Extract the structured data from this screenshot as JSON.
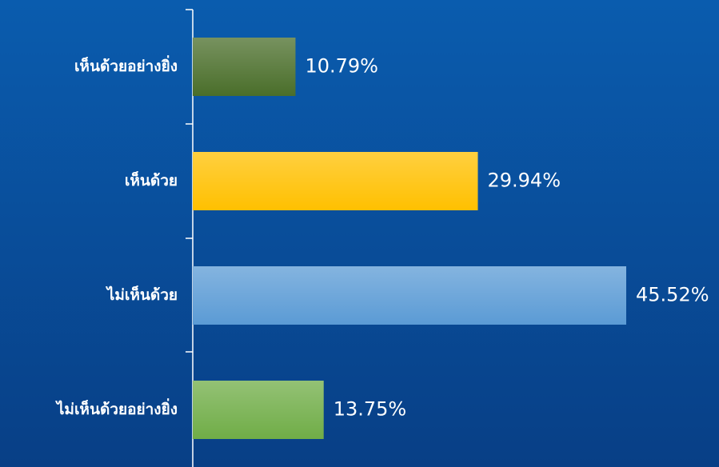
{
  "chart_data": {
    "type": "barh",
    "categories": [
      "เห็นด้วยอย่างยิ่ง",
      "เห็นด้วย",
      "ไม่เห็นด้วย",
      "ไม่เห็นด้วยอย่างยิ่ง"
    ],
    "values": [
      10.79,
      29.94,
      45.52,
      13.75
    ],
    "value_labels": [
      "10.79%",
      "29.94%",
      "45.52%",
      "13.75%"
    ],
    "colors": [
      "#4a6e2a",
      "#ffc000",
      "#5b9bd5",
      "#70ad47"
    ]
  }
}
